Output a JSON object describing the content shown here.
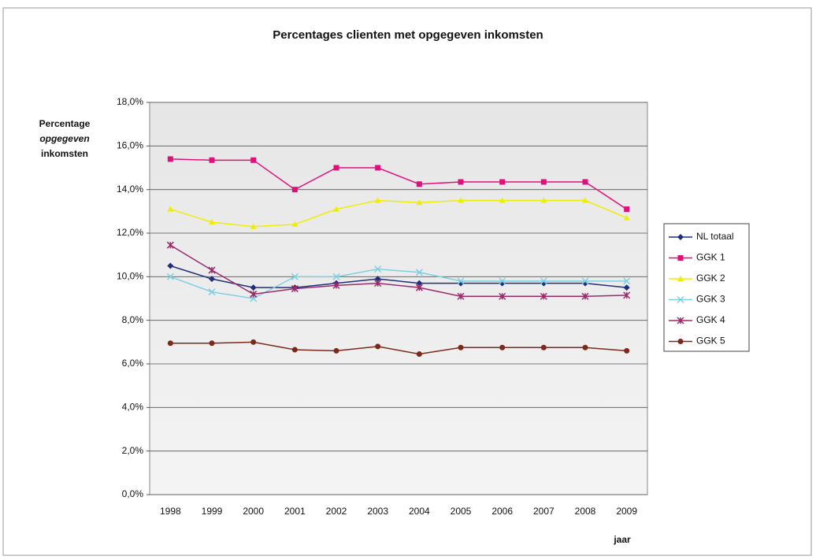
{
  "chart_data": {
    "type": "line",
    "title": "Percentages clienten met opgegeven inkomsten",
    "y_label": [
      "Percentage",
      "opgegeven",
      "inkomsten"
    ],
    "x_label": "jaar",
    "categories": [
      "1998",
      "1999",
      "2000",
      "2001",
      "2002",
      "2003",
      "2004",
      "2005",
      "2006",
      "2007",
      "2008",
      "2009"
    ],
    "series": [
      {
        "name": "NL totaal",
        "color": "#1f2f7a",
        "marker": "diamond",
        "values": [
          10.5,
          9.9,
          9.5,
          9.5,
          9.7,
          9.9,
          9.7,
          9.7,
          9.7,
          9.7,
          9.7,
          9.5
        ]
      },
      {
        "name": "GGK 1",
        "color": "#e0107a",
        "marker": "square",
        "values": [
          15.4,
          15.35,
          15.35,
          14.0,
          15.0,
          15.0,
          14.25,
          14.35,
          14.35,
          14.35,
          14.35,
          13.1
        ]
      },
      {
        "name": "GGK 2",
        "color": "#eeee00",
        "marker": "triangle",
        "values": [
          13.1,
          12.5,
          12.3,
          12.4,
          13.1,
          13.5,
          13.4,
          13.5,
          13.5,
          13.5,
          13.5,
          12.7
        ]
      },
      {
        "name": "GGK 3",
        "color": "#7fcfe0",
        "marker": "x",
        "values": [
          10.0,
          9.3,
          9.0,
          10.0,
          10.0,
          10.35,
          10.2,
          9.8,
          9.8,
          9.8,
          9.8,
          9.8
        ]
      },
      {
        "name": "GGK 4",
        "color": "#9b2a6b",
        "marker": "star",
        "values": [
          11.45,
          10.3,
          9.2,
          9.45,
          9.6,
          9.7,
          9.5,
          9.1,
          9.1,
          9.1,
          9.1,
          9.15
        ]
      },
      {
        "name": "GGK 5",
        "color": "#7a2a1a",
        "marker": "circle",
        "values": [
          6.95,
          6.95,
          7.0,
          6.65,
          6.6,
          6.8,
          6.45,
          6.75,
          6.75,
          6.75,
          6.75,
          6.6
        ]
      }
    ],
    "ylim": [
      0,
      18
    ],
    "yticks": [
      {
        "value": 0,
        "label": "0,0%"
      },
      {
        "value": 2,
        "label": "2,0%"
      },
      {
        "value": 4,
        "label": "4,0%"
      },
      {
        "value": 6,
        "label": "6,0%"
      },
      {
        "value": 8,
        "label": "8,0%"
      },
      {
        "value": 10,
        "label": "10,0%"
      },
      {
        "value": 12,
        "label": "12,0%"
      },
      {
        "value": 14,
        "label": "14,0%"
      },
      {
        "value": 16,
        "label": "16,0%"
      },
      {
        "value": 18,
        "label": "18,0%"
      }
    ],
    "grid": true,
    "legend": "right"
  }
}
